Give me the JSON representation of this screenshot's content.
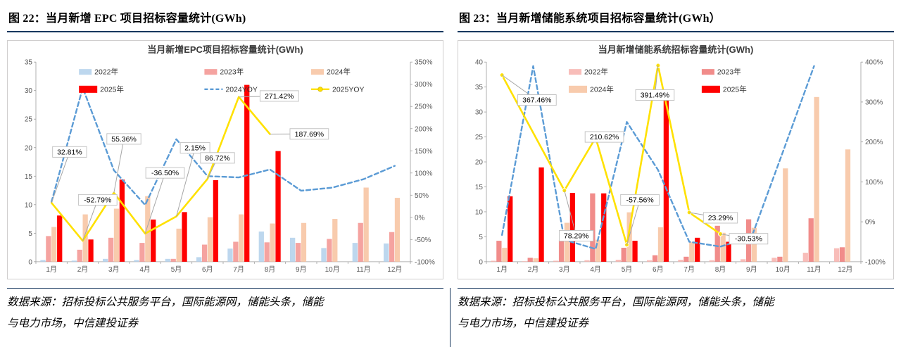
{
  "accent_colors": {
    "rule_navy": "#17375E",
    "frame_gray": "#D0CECE"
  },
  "figures": [
    {
      "header": "图 22：当月新增 EPC 项目招标容量统计(GWh)",
      "source_line1": "数据来源：招标投标公共服务平台，国际能源网，储能头条，储能",
      "source_line2": "与电力市场，中信建投证券"
    },
    {
      "header": "图 23：当月新增储能系统项目招标容量统计(GWh）",
      "source_line1": "数据来源：招标投标公共服务平台，国际能源网，储能头条，储能",
      "source_line2": "与电力市场，中信建投证券"
    }
  ],
  "chart_data": [
    {
      "type": "bar",
      "title": "当月新增EPC项目招标容量统计(GWh)",
      "categories": [
        "1月",
        "2月",
        "3月",
        "4月",
        "5月",
        "6月",
        "7月",
        "8月",
        "9月",
        "10月",
        "11月",
        "12月"
      ],
      "left_axis": {
        "min": 0,
        "max": 35,
        "step": 5
      },
      "right_axis": {
        "min": -100,
        "max": 350,
        "step": 50,
        "suffix": "%"
      },
      "bar_series": [
        {
          "name": "2022年",
          "color": "#BDD7EE",
          "values": [
            0.3,
            0.2,
            0.5,
            0.3,
            0.5,
            0.8,
            2.3,
            5.3,
            4.2,
            2.4,
            3.3,
            3.2
          ]
        },
        {
          "name": "2023年",
          "color": "#F5A3A0",
          "values": [
            4.5,
            2.1,
            4.2,
            3.3,
            0.5,
            3.0,
            3.5,
            3.4,
            3.3,
            4.0,
            6.8,
            5.2
          ]
        },
        {
          "name": "2024年",
          "color": "#F8CBAD",
          "values": [
            6.1,
            8.3,
            9.3,
            11.5,
            5.8,
            7.8,
            8.3,
            6.7,
            6.8,
            7.5,
            13.0,
            11.2
          ]
        },
        {
          "name": "2025年",
          "color": "#FF0000",
          "values": [
            8.1,
            3.9,
            14.4,
            7.4,
            8.7,
            14.3,
            31.0,
            19.4,
            null,
            null,
            null,
            null
          ]
        }
      ],
      "line_series": [
        {
          "name": "2024YOY",
          "color": "#5B9BD5",
          "dash": "6 4",
          "width": 2.4,
          "marker": false,
          "values": [
            35,
            292,
            106,
            28,
            176,
            93,
            90,
            108,
            60,
            67,
            86,
            116
          ]
        },
        {
          "name": "2025YOY",
          "color": "#FFE100",
          "dash": "",
          "width": 2.6,
          "marker": false,
          "values": [
            32.81,
            -52.79,
            55.36,
            -36.5,
            2.15,
            86.72,
            271.42,
            187.69,
            null,
            null,
            null,
            null
          ]
        }
      ],
      "annotations": [
        {
          "text": "32.81%",
          "month": 0,
          "value": 32.81,
          "bx": 0.09,
          "by": 0.45
        },
        {
          "text": "-52.79%",
          "month": 1,
          "value": -52.79,
          "bx": 0.165,
          "by": 0.69
        },
        {
          "text": "55.36%",
          "month": 2,
          "value": 55.36,
          "bx": 0.235,
          "by": 0.385
        },
        {
          "text": "-36.50%",
          "month": 3,
          "value": -36.5,
          "bx": 0.345,
          "by": 0.555
        },
        {
          "text": "2.15%",
          "month": 4,
          "value": 2.15,
          "bx": 0.425,
          "by": 0.43
        },
        {
          "text": "86.72%",
          "month": 5,
          "value": 86.72,
          "bx": 0.485,
          "by": 0.48
        },
        {
          "text": "271.42%",
          "month": 6,
          "value": 271.42,
          "bx": 0.65,
          "by": 0.17
        },
        {
          "text": "187.69%",
          "month": 7,
          "value": 187.69,
          "bx": 0.73,
          "by": 0.36
        }
      ],
      "legend": [
        {
          "y": 0.028,
          "items": [
            {
              "label": "2022年",
              "swatch": "bar",
              "color": "#BDD7EE",
              "x": 0.115
            },
            {
              "label": "2023年",
              "swatch": "bar",
              "color": "#F5A3A0",
              "x": 0.45
            },
            {
              "label": "2024年",
              "swatch": "bar",
              "color": "#F8CBAD",
              "x": 0.735
            }
          ]
        },
        {
          "y": 0.115,
          "items": [
            {
              "label": "2025年",
              "swatch": "bar",
              "color": "#FF0000",
              "x": 0.115,
              "big": true
            },
            {
              "label": "2024YOY",
              "swatch": "dashline",
              "color": "#5B9BD5",
              "x": 0.45
            },
            {
              "label": "2025YOY",
              "swatch": "linemarker",
              "color": "#FFE100",
              "x": 0.735
            }
          ]
        }
      ]
    },
    {
      "type": "bar",
      "title": "当月新增储能系统招标容量统计(GWh)",
      "categories": [
        "1月",
        "2月",
        "3月",
        "4月",
        "5月",
        "6月",
        "7月",
        "8月",
        "9月",
        "10月",
        "11月",
        "12月"
      ],
      "left_axis": {
        "min": 0,
        "max": 40,
        "step": 5
      },
      "right_axis": {
        "min": -100,
        "max": 400,
        "step": 100,
        "suffix": "%"
      },
      "bar_series": [
        {
          "name": "2022年",
          "color": "#F8BDB9",
          "values": [
            0.2,
            0.1,
            0.2,
            0.3,
            0.4,
            0.3,
            0.4,
            0.3,
            0.5,
            0.8,
            1.8,
            2.7
          ]
        },
        {
          "name": "2023年",
          "color": "#F18C8A",
          "values": [
            4.2,
            0.8,
            4.4,
            13.7,
            2.8,
            1.3,
            1.0,
            7.2,
            8.5,
            1.0,
            8.7,
            2.9
          ]
        },
        {
          "name": "2024年",
          "color": "#F8CBAD",
          "values": [
            2.8,
            0.7,
            7.8,
            4.4,
            9.9,
            6.9,
            3.9,
            5.8,
            6.8,
            18.7,
            33.0,
            22.5
          ]
        },
        {
          "name": "2025年",
          "color": "#FF0000",
          "values": [
            13.1,
            18.9,
            13.8,
            13.7,
            4.2,
            34.0,
            4.8,
            4.0,
            null,
            null,
            null,
            null
          ]
        }
      ],
      "line_series": [
        {
          "name": "2024YOY",
          "color": "#5B9BD5",
          "dash": "6 4",
          "width": 2.4,
          "marker": false,
          "values": [
            -33,
            390,
            -45,
            -68,
            250,
            130,
            -50,
            -62,
            -38,
            175,
            390,
            null
          ]
        },
        {
          "name": "2025YOY",
          "color": "#FFE100",
          "dash": "",
          "width": 2.6,
          "marker": true,
          "values": [
            367.46,
            null,
            78.29,
            210.62,
            -57.56,
            391.49,
            23.29,
            -30.53,
            null,
            null,
            null,
            null
          ]
        }
      ],
      "annotations": [
        {
          "text": "367.46%",
          "month": 0,
          "value": 367.46,
          "bx": 0.135,
          "by": 0.19
        },
        {
          "text": "78.29%",
          "month": 2,
          "value": 78.29,
          "bx": 0.24,
          "by": 0.87
        },
        {
          "text": "210.62%",
          "month": 3,
          "value": 210.62,
          "bx": 0.315,
          "by": 0.375
        },
        {
          "text": "-57.56%",
          "month": 4,
          "value": -57.56,
          "bx": 0.41,
          "by": 0.69
        },
        {
          "text": "391.49%",
          "month": 5,
          "value": 391.49,
          "bx": 0.45,
          "by": 0.165
        },
        {
          "text": "23.29%",
          "month": 6,
          "value": 23.29,
          "bx": 0.625,
          "by": 0.78
        },
        {
          "text": "-30.53%",
          "month": 7,
          "value": -30.53,
          "bx": 0.7,
          "by": 0.885
        }
      ],
      "legend": [
        {
          "y": 0.028,
          "items": [
            {
              "label": "2022年",
              "swatch": "bar",
              "color": "#F8BDB9",
              "x": 0.22
            },
            {
              "label": "2023年",
              "swatch": "bar",
              "color": "#F18C8A",
              "x": 0.575
            }
          ]
        },
        {
          "y": 0.115,
          "items": [
            {
              "label": "2024年",
              "swatch": "bar",
              "color": "#F8CBAD",
              "x": 0.22,
              "big": true
            },
            {
              "label": "2025年",
              "swatch": "bar",
              "color": "#FF0000",
              "x": 0.575,
              "big": true
            }
          ]
        }
      ]
    }
  ]
}
